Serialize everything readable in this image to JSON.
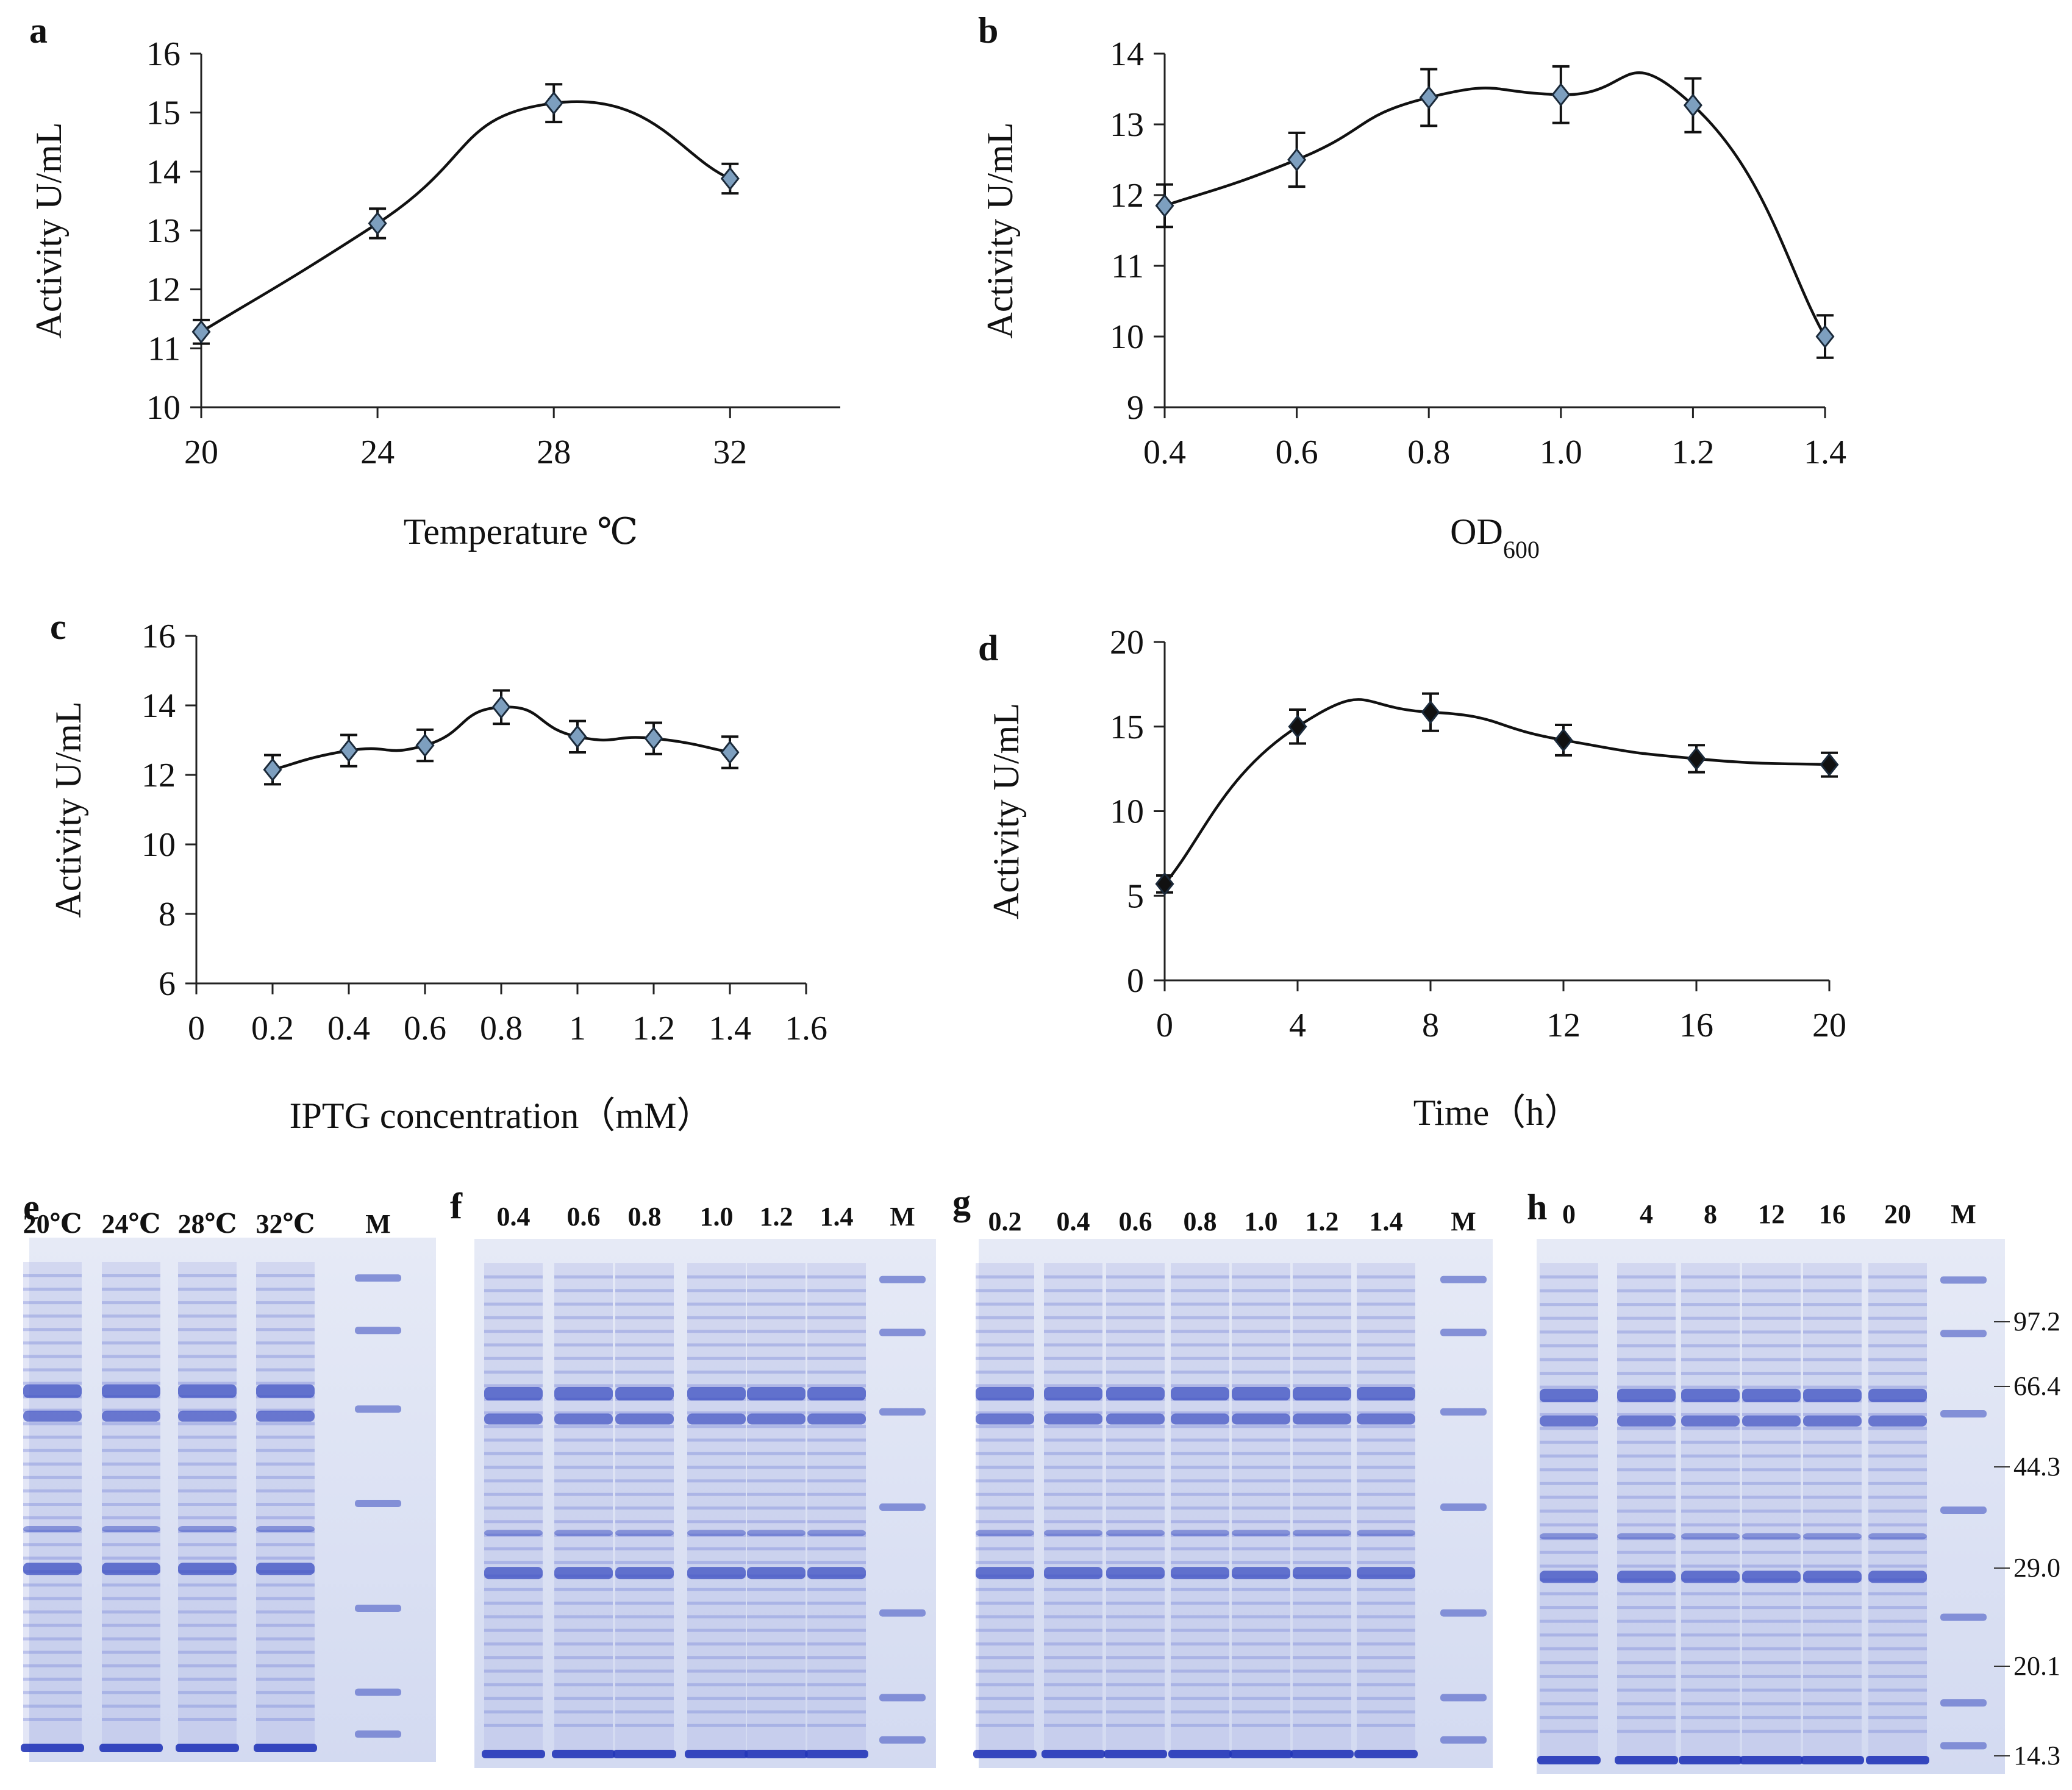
{
  "chart_data": [
    {
      "panel": "a",
      "type": "line",
      "xlabel": "Temperature ℃",
      "ylabel": "Activity U/mL",
      "xlim": [
        20,
        34.5
      ],
      "ylim": [
        10,
        16
      ],
      "xticks": [
        20,
        24,
        28,
        32
      ],
      "yticks": [
        10,
        11,
        12,
        13,
        14,
        15,
        16
      ],
      "marker": "diamond",
      "series": [
        {
          "name": "Activity",
          "x": [
            20,
            24,
            28,
            32
          ],
          "y": [
            11.28,
            13.12,
            15.16,
            13.88
          ],
          "err": [
            0.2,
            0.25,
            0.32,
            0.25
          ]
        }
      ]
    },
    {
      "panel": "b",
      "type": "line",
      "xlabel": "OD",
      "xlabel_sub": "600",
      "ylabel": "Activity U/mL",
      "xlim": [
        0.4,
        1.4
      ],
      "ylim": [
        9,
        14
      ],
      "xticks": [
        "0.4",
        "0.6",
        "0.8",
        "1.0",
        "1.2",
        "1.4"
      ],
      "yticks": [
        9,
        10,
        11,
        12,
        13,
        14
      ],
      "marker": "diamond",
      "series": [
        {
          "name": "Activity",
          "x": [
            0.4,
            0.6,
            0.8,
            1.0,
            1.2,
            1.4
          ],
          "y": [
            11.85,
            12.5,
            13.38,
            13.42,
            13.27,
            10.0
          ],
          "err": [
            0.3,
            0.38,
            0.4,
            0.4,
            0.38,
            0.3
          ]
        }
      ]
    },
    {
      "panel": "c",
      "type": "line",
      "xlabel": "IPTG concentration（mM）",
      "ylabel": "Activity U/mL",
      "xlim": [
        0,
        1.6
      ],
      "ylim": [
        6,
        16
      ],
      "xticks": [
        "0",
        "0.2",
        "0.4",
        "0.6",
        "0.8",
        "1",
        "1.2",
        "1.4",
        "1.6"
      ],
      "yticks": [
        6,
        8,
        10,
        12,
        14,
        16
      ],
      "marker": "diamond",
      "series": [
        {
          "name": "Activity",
          "x": [
            0.2,
            0.4,
            0.6,
            0.8,
            1.0,
            1.2,
            1.4
          ],
          "y": [
            12.15,
            12.7,
            12.85,
            13.95,
            13.1,
            13.05,
            12.65
          ],
          "err": [
            0.42,
            0.45,
            0.45,
            0.48,
            0.45,
            0.45,
            0.45
          ]
        }
      ]
    },
    {
      "panel": "d",
      "type": "line",
      "xlabel": "Time（h）",
      "ylabel": "Activity U/mL",
      "xlim": [
        0,
        20
      ],
      "ylim": [
        0,
        20
      ],
      "xticks": [
        0,
        4,
        8,
        12,
        16,
        20
      ],
      "yticks": [
        0,
        5,
        10,
        15,
        20
      ],
      "marker": "diamond",
      "series": [
        {
          "name": "Activity",
          "x": [
            0,
            4,
            8,
            12,
            16,
            20
          ],
          "y": [
            5.7,
            15.0,
            15.85,
            14.2,
            13.1,
            12.75
          ],
          "err": [
            0.5,
            1.0,
            1.1,
            0.9,
            0.8,
            0.7
          ]
        }
      ]
    }
  ],
  "gels": [
    {
      "panel": "e",
      "lanes": [
        "20℃",
        "24℃",
        "28℃",
        "32℃",
        "M"
      ]
    },
    {
      "panel": "f",
      "lanes": [
        "0.4",
        "0.6",
        "0.8",
        "1.0",
        "1.2",
        "1.4",
        "M"
      ]
    },
    {
      "panel": "g",
      "lanes": [
        "0.2",
        "0.4",
        "0.6",
        "0.8",
        "1.0",
        "1.2",
        "1.4",
        "M"
      ]
    },
    {
      "panel": "h",
      "lanes": [
        "0",
        "4",
        "8",
        "12",
        "16",
        "20",
        "M"
      ]
    }
  ],
  "markers_kda": [
    "97.2",
    "66.4",
    "44.3",
    "29.0",
    "20.1",
    "14.3"
  ],
  "colors": {
    "line": "#111111",
    "marker": "#7d9fbf",
    "gel_bg": "#dde3f4",
    "band": "#3c4fc2"
  }
}
